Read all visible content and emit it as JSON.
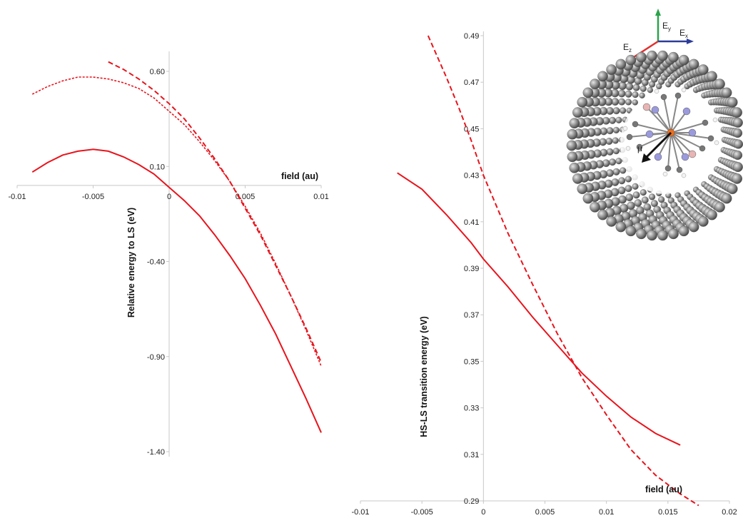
{
  "chart_data": [
    {
      "type": "line",
      "xlabel": "field (au)",
      "ylabel": "Relative energy to LS (eV)",
      "xlim": [
        -0.01,
        0.01
      ],
      "ylim": [
        -1.5,
        0.7
      ],
      "x_ticks": [
        "-0.01",
        "-0.005",
        "0",
        "0.005",
        "0.01"
      ],
      "y_ticks": [
        "0.60",
        "0.10",
        "-0.40",
        "-0.90",
        "-1.40"
      ],
      "grid": false,
      "series": [
        {
          "style": "solid",
          "x": [
            -0.009,
            -0.008,
            -0.007,
            -0.006,
            -0.005,
            -0.004,
            -0.003,
            -0.002,
            -0.001,
            0.0,
            0.001,
            0.002,
            0.003,
            0.004,
            0.005,
            0.006,
            0.007,
            0.008,
            0.009,
            0.01
          ],
          "y": [
            0.07,
            0.12,
            0.16,
            0.18,
            0.19,
            0.18,
            0.15,
            0.11,
            0.06,
            -0.01,
            -0.08,
            -0.16,
            -0.26,
            -0.37,
            -0.49,
            -0.63,
            -0.78,
            -0.95,
            -1.12,
            -1.3
          ]
        },
        {
          "style": "dotted",
          "x": [
            -0.009,
            -0.008,
            -0.007,
            -0.006,
            -0.005,
            -0.004,
            -0.003,
            -0.002,
            -0.001,
            0.0,
            0.001,
            0.002,
            0.003,
            0.004,
            0.005,
            0.006,
            0.007,
            0.008,
            0.009,
            0.01
          ],
          "y": [
            0.48,
            0.52,
            0.55,
            0.57,
            0.57,
            0.56,
            0.54,
            0.51,
            0.46,
            0.39,
            0.32,
            0.23,
            0.13,
            0.02,
            -0.11,
            -0.25,
            -0.41,
            -0.58,
            -0.76,
            -0.95
          ]
        },
        {
          "style": "dashed",
          "x": [
            -0.004,
            -0.003,
            -0.002,
            -0.001,
            0.0,
            0.001,
            0.002,
            0.003,
            0.004,
            0.005,
            0.006,
            0.007,
            0.008,
            0.009,
            0.01
          ],
          "y": [
            0.65,
            0.61,
            0.56,
            0.5,
            0.43,
            0.35,
            0.25,
            0.14,
            0.02,
            -0.12,
            -0.26,
            -0.42,
            -0.58,
            -0.75,
            -0.93
          ]
        }
      ]
    },
    {
      "type": "line",
      "xlabel": "field (au)",
      "ylabel": "HS-LS transition energy (eV)",
      "xlim": [
        -0.01,
        0.02
      ],
      "ylim": [
        0.29,
        0.49
      ],
      "x_ticks": [
        "-0.01",
        "-0.005",
        "0",
        "0.005",
        "0.01",
        "0.015",
        "0.02"
      ],
      "y_ticks": [
        "0.29",
        "0.31",
        "0.33",
        "0.35",
        "0.37",
        "0.39",
        "0.41",
        "0.43",
        "0.45",
        "0.47",
        "0.49"
      ],
      "grid": false,
      "series": [
        {
          "style": "solid",
          "x": [
            -0.007,
            -0.005,
            -0.003,
            -0.001,
            0.0,
            0.002,
            0.004,
            0.006,
            0.008,
            0.01,
            0.012,
            0.014,
            0.016
          ],
          "y": [
            0.431,
            0.424,
            0.413,
            0.401,
            0.394,
            0.382,
            0.369,
            0.357,
            0.345,
            0.335,
            0.326,
            0.319,
            0.314
          ]
        },
        {
          "style": "dashed",
          "x": [
            -0.0045,
            -0.003,
            -0.002,
            -0.001,
            0.0,
            0.002,
            0.004,
            0.006,
            0.008,
            0.01,
            0.012,
            0.014,
            0.016,
            0.0175
          ],
          "y": [
            0.49,
            0.472,
            0.459,
            0.445,
            0.43,
            0.405,
            0.383,
            0.362,
            0.343,
            0.327,
            0.312,
            0.301,
            0.293,
            0.288
          ]
        }
      ]
    }
  ],
  "inset": {
    "vector_labels": {
      "ey": "E",
      "ey_sub": "y",
      "ex": "E",
      "ex_sub": "x",
      "ez": "E",
      "ez_sub": "z",
      "mu": "μ"
    },
    "colors": {
      "ey": "#2aa34a",
      "ex": "#2c3c9a",
      "ez": "#e03030",
      "mu": "#111111",
      "tube": "#8a8a8a",
      "nitrogen": "#9a9adc",
      "boron": "#e8b4b4",
      "iron": "#e87020"
    }
  },
  "colors": {
    "line": "#e8141c",
    "axis": "#c8c8c8",
    "text": "#222222"
  }
}
